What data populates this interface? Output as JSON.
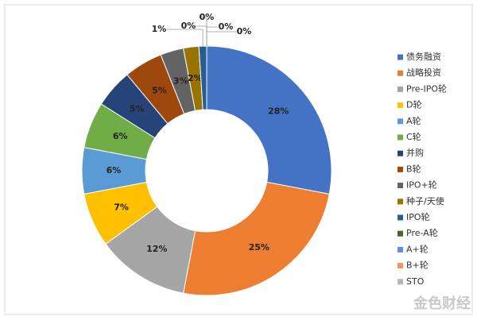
{
  "chart_data": {
    "type": "donut",
    "categories": [
      "债务融资",
      "战略投资",
      "Pre-IPO轮",
      "D轮",
      "A轮",
      "C轮",
      "并购",
      "B轮",
      "IPO+轮",
      "种子/天使",
      "IPO轮",
      "Pre-A轮",
      "A+轮",
      "B+轮",
      "STO"
    ],
    "values": [
      28,
      25,
      12,
      7,
      6,
      6,
      5,
      5,
      3,
      2,
      1,
      0,
      0,
      0,
      0
    ],
    "value_labels": [
      "28%",
      "25%",
      "12%",
      "7%",
      "6%",
      "6%",
      "5%",
      "5%",
      "3%",
      "2%",
      "1%",
      "0%",
      "0%",
      "0%",
      "0%"
    ],
    "colors": [
      "#4472c4",
      "#ed7d31",
      "#a5a5a5",
      "#ffc000",
      "#5b9bd5",
      "#70ad47",
      "#264478",
      "#9e480e",
      "#636363",
      "#997300",
      "#255e91",
      "#43682b",
      "#698ed0",
      "#f1975a",
      "#b7b7b7"
    ],
    "legend": "right"
  },
  "watermark": "金色财经"
}
